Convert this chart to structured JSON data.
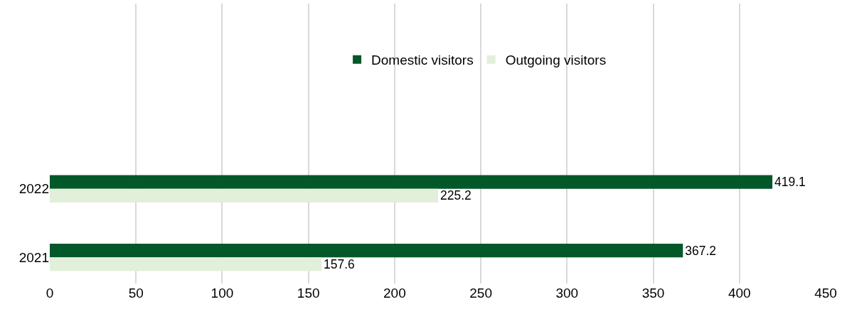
{
  "chart_data": {
    "type": "bar",
    "orientation": "horizontal",
    "categories": [
      "2022",
      "2021"
    ],
    "series": [
      {
        "name": "Domestic visitors",
        "color": "#03582a",
        "values": [
          419.1,
          367.2
        ]
      },
      {
        "name": "Outgoing visitors",
        "color": "#e2efda",
        "values": [
          225.2,
          157.6
        ]
      }
    ],
    "xlim": [
      0,
      450
    ],
    "xticks": [
      0,
      50,
      100,
      150,
      200,
      250,
      300,
      350,
      400,
      450
    ],
    "grid": "x",
    "legend": "top",
    "data_labels": true
  }
}
